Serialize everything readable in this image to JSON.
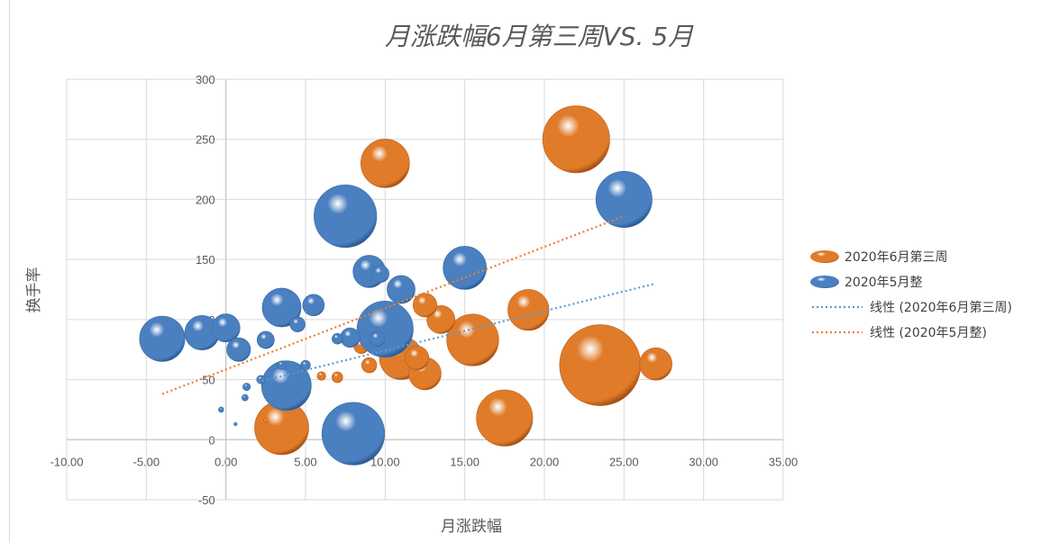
{
  "chart_data": {
    "type": "bubble",
    "title": "月涨跌幅6月第三周VS. 5月",
    "xlabel": "月涨跌幅",
    "ylabel": "换手率",
    "xlim": [
      -10,
      35
    ],
    "ylim": [
      -50,
      300
    ],
    "x_ticks": [
      "-10.00",
      "-5.00",
      "0.00",
      "5.00",
      "10.00",
      "15.00",
      "20.00",
      "25.00",
      "30.00",
      "35.00"
    ],
    "y_ticks": [
      "-50",
      "0",
      "50",
      "100",
      "150",
      "200",
      "250",
      "300"
    ],
    "grid": true,
    "legend_position": "right",
    "series": [
      {
        "name": "2020年6月第三周",
        "color": "#e07b2a",
        "points": [
          {
            "x": 10.0,
            "y": 230,
            "size": 45
          },
          {
            "x": 22.0,
            "y": 250,
            "size": 62
          },
          {
            "x": 23.5,
            "y": 62,
            "size": 75
          },
          {
            "x": 27.0,
            "y": 63,
            "size": 30
          },
          {
            "x": 19.0,
            "y": 108,
            "size": 38
          },
          {
            "x": 17.5,
            "y": 18,
            "size": 52
          },
          {
            "x": 15.5,
            "y": 83,
            "size": 48
          },
          {
            "x": 13.5,
            "y": 100,
            "size": 26
          },
          {
            "x": 12.5,
            "y": 112,
            "size": 22
          },
          {
            "x": 12.5,
            "y": 55,
            "size": 30
          },
          {
            "x": 11.0,
            "y": 68,
            "size": 40
          },
          {
            "x": 12.0,
            "y": 68,
            "size": 22
          },
          {
            "x": 9.0,
            "y": 62,
            "size": 14
          },
          {
            "x": 8.5,
            "y": 78,
            "size": 14
          },
          {
            "x": 3.5,
            "y": 10,
            "size": 50
          },
          {
            "x": 7.0,
            "y": 52,
            "size": 10
          },
          {
            "x": 6.0,
            "y": 53,
            "size": 8
          },
          {
            "x": 2.5,
            "y": 16,
            "size": 4
          }
        ]
      },
      {
        "name": "2020年5月整",
        "color": "#4a7fc0",
        "points": [
          {
            "x": 7.5,
            "y": 186,
            "size": 58
          },
          {
            "x": 25.0,
            "y": 200,
            "size": 52
          },
          {
            "x": 15.0,
            "y": 143,
            "size": 40
          },
          {
            "x": 8.0,
            "y": 5,
            "size": 58
          },
          {
            "x": 10.0,
            "y": 92,
            "size": 52
          },
          {
            "x": 9.0,
            "y": 140,
            "size": 30
          },
          {
            "x": 11.0,
            "y": 125,
            "size": 26
          },
          {
            "x": 9.7,
            "y": 138,
            "size": 16
          },
          {
            "x": 3.5,
            "y": 110,
            "size": 36
          },
          {
            "x": 5.5,
            "y": 112,
            "size": 20
          },
          {
            "x": 4.5,
            "y": 96,
            "size": 14
          },
          {
            "x": 3.8,
            "y": 45,
            "size": 46
          },
          {
            "x": -4.0,
            "y": 84,
            "size": 42
          },
          {
            "x": -1.5,
            "y": 89,
            "size": 32
          },
          {
            "x": 0.0,
            "y": 93,
            "size": 26
          },
          {
            "x": 0.8,
            "y": 75,
            "size": 22
          },
          {
            "x": 2.5,
            "y": 83,
            "size": 16
          },
          {
            "x": 7.8,
            "y": 85,
            "size": 18
          },
          {
            "x": 9.5,
            "y": 84,
            "size": 14
          },
          {
            "x": 7.0,
            "y": 84,
            "size": 10
          },
          {
            "x": 5.0,
            "y": 62,
            "size": 9
          },
          {
            "x": 3.5,
            "y": 62,
            "size": 8
          },
          {
            "x": 2.2,
            "y": 50,
            "size": 8
          },
          {
            "x": 1.3,
            "y": 44,
            "size": 7
          },
          {
            "x": 1.2,
            "y": 35,
            "size": 6
          },
          {
            "x": -0.3,
            "y": 25,
            "size": 5
          },
          {
            "x": 0.6,
            "y": 13,
            "size": 3
          }
        ]
      }
    ],
    "trendlines": [
      {
        "name": "线性 (2020年6月第三周)",
        "color": "#5b9bd5",
        "from": [
          2.0,
          48
        ],
        "to": [
          27.0,
          130
        ]
      },
      {
        "name": "线性 (2020年5月整)",
        "color": "#ed7d31",
        "from": [
          -4.0,
          38
        ],
        "to": [
          25.0,
          186
        ]
      }
    ]
  }
}
